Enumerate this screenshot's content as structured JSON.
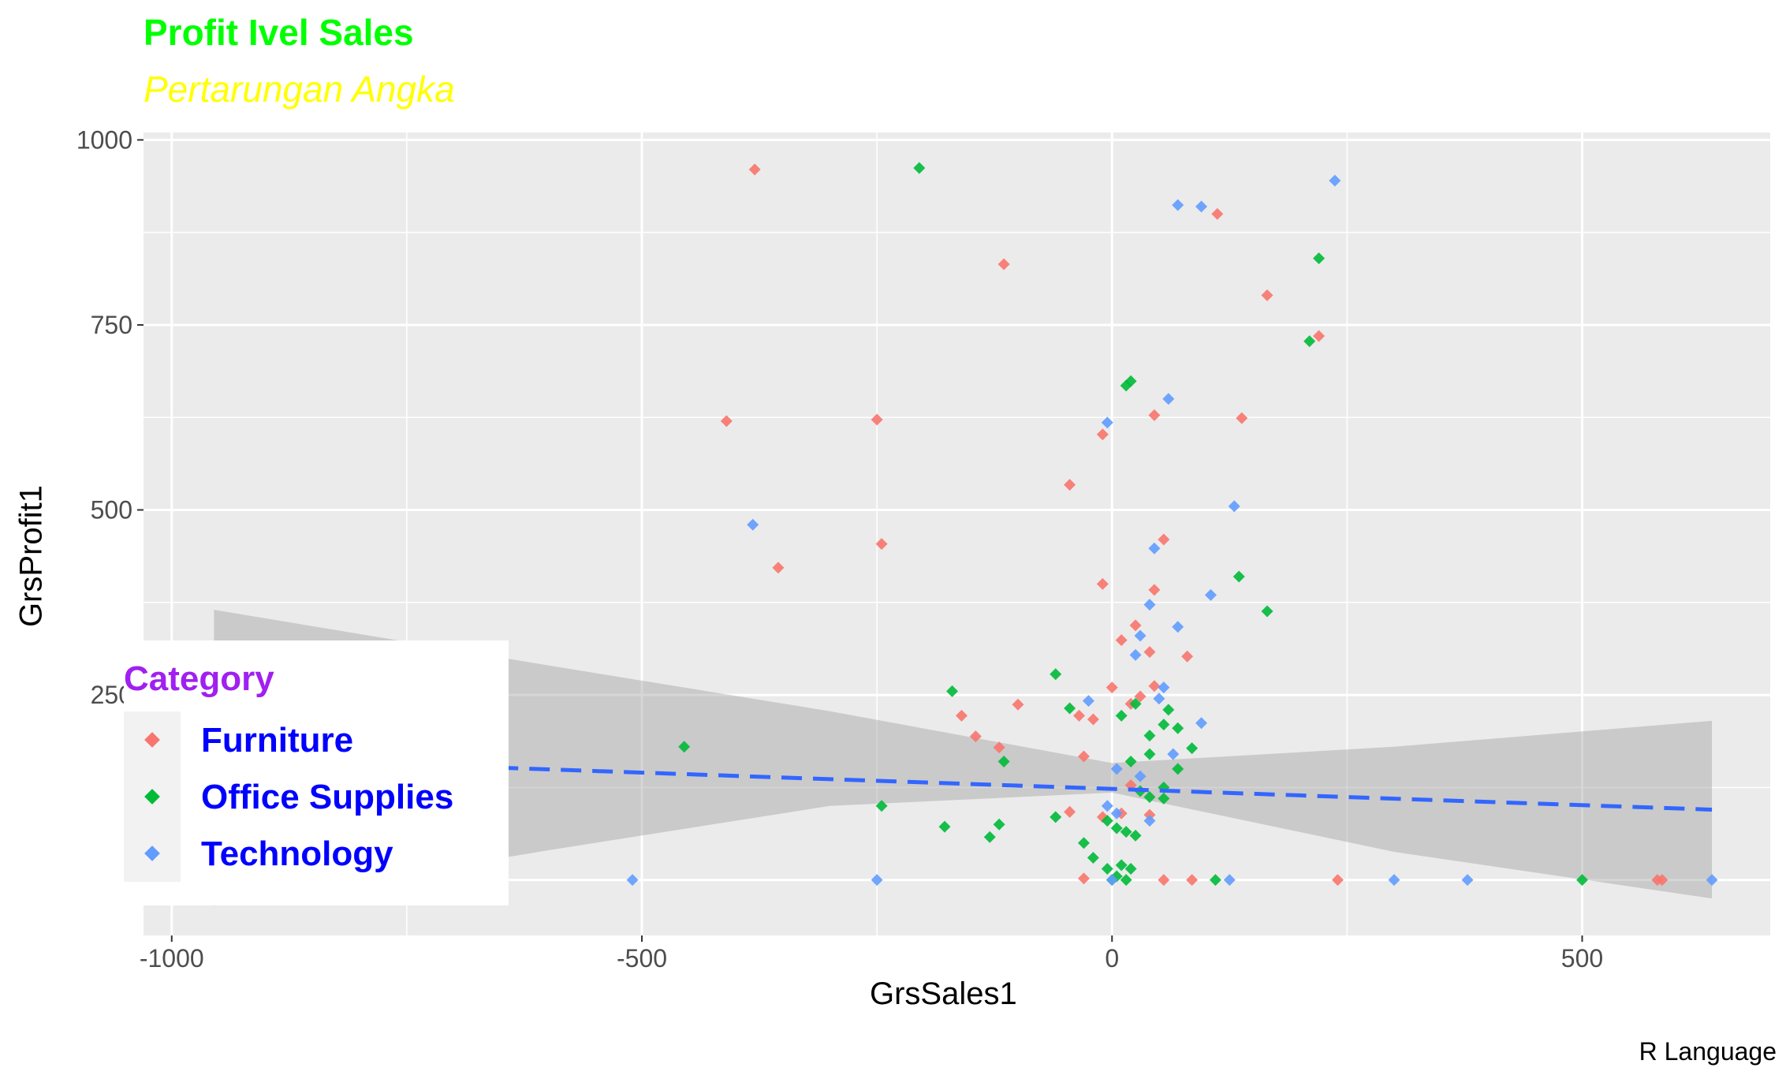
{
  "chart_data": {
    "type": "scatter",
    "title": "Profit Ivel Sales",
    "subtitle": "Pertarungan Angka",
    "caption": "R Language",
    "xlabel": "GrsSales1",
    "ylabel": "GrsProfit1",
    "xlim": [
      -1030,
      700
    ],
    "ylim": [
      -75,
      1010
    ],
    "x_ticks": [
      -1000,
      -500,
      0,
      500
    ],
    "y_ticks": [
      1000,
      750,
      500,
      250
    ],
    "grid": true,
    "legend_position": "bottom-left",
    "legend_title": "Category",
    "series": [
      {
        "name": "Furniture",
        "color": "#F8766D",
        "points": [
          [
            -380,
            960
          ],
          [
            -115,
            832
          ],
          [
            -410,
            620
          ],
          [
            -250,
            622
          ],
          [
            -245,
            454
          ],
          [
            -355,
            422
          ],
          [
            -45,
            534
          ],
          [
            -10,
            602
          ],
          [
            -10,
            400
          ],
          [
            45,
            628
          ],
          [
            55,
            460
          ],
          [
            112,
            900
          ],
          [
            165,
            790
          ],
          [
            220,
            735
          ],
          [
            138,
            624
          ],
          [
            45,
            392
          ],
          [
            25,
            344
          ],
          [
            40,
            308
          ],
          [
            10,
            324
          ],
          [
            80,
            302
          ],
          [
            45,
            262
          ],
          [
            0,
            260
          ],
          [
            30,
            248
          ],
          [
            20,
            238
          ],
          [
            -100,
            237
          ],
          [
            -160,
            222
          ],
          [
            -35,
            222
          ],
          [
            -20,
            217
          ],
          [
            -145,
            194
          ],
          [
            -120,
            179
          ],
          [
            -30,
            167
          ],
          [
            -45,
            92
          ],
          [
            -10,
            85
          ],
          [
            10,
            90
          ],
          [
            40,
            88
          ],
          [
            20,
            128
          ],
          [
            -30,
            2
          ],
          [
            55,
            0
          ],
          [
            85,
            0
          ],
          [
            240,
            0
          ],
          [
            580,
            0
          ],
          [
            585,
            0
          ]
        ]
      },
      {
        "name": "Office Supplies",
        "color": "#00BA38",
        "points": [
          [
            -205,
            962
          ],
          [
            220,
            840
          ],
          [
            210,
            728
          ],
          [
            20,
            674
          ],
          [
            15,
            668
          ],
          [
            -60,
            278
          ],
          [
            -170,
            255
          ],
          [
            -45,
            232
          ],
          [
            135,
            410
          ],
          [
            165,
            363
          ],
          [
            25,
            238
          ],
          [
            10,
            222
          ],
          [
            60,
            230
          ],
          [
            70,
            205
          ],
          [
            55,
            210
          ],
          [
            40,
            195
          ],
          [
            85,
            178
          ],
          [
            -115,
            160
          ],
          [
            70,
            150
          ],
          [
            40,
            170
          ],
          [
            20,
            160
          ],
          [
            55,
            125
          ],
          [
            30,
            120
          ],
          [
            40,
            112
          ],
          [
            55,
            110
          ],
          [
            -245,
            100
          ],
          [
            -60,
            85
          ],
          [
            -120,
            75
          ],
          [
            -178,
            72
          ],
          [
            -130,
            58
          ],
          [
            -30,
            50
          ],
          [
            -5,
            80
          ],
          [
            5,
            70
          ],
          [
            15,
            65
          ],
          [
            25,
            60
          ],
          [
            -20,
            30
          ],
          [
            10,
            20
          ],
          [
            20,
            15
          ],
          [
            -5,
            15
          ],
          [
            5,
            5
          ],
          [
            0,
            0
          ],
          [
            15,
            0
          ],
          [
            110,
            0
          ],
          [
            500,
            0
          ],
          [
            -455,
            180
          ]
        ]
      },
      {
        "name": "Technology",
        "color": "#619CFF",
        "points": [
          [
            237,
            945
          ],
          [
            70,
            912
          ],
          [
            95,
            910
          ],
          [
            -382,
            480
          ],
          [
            60,
            650
          ],
          [
            -5,
            618
          ],
          [
            130,
            505
          ],
          [
            45,
            448
          ],
          [
            105,
            385
          ],
          [
            40,
            372
          ],
          [
            70,
            342
          ],
          [
            30,
            330
          ],
          [
            25,
            304
          ],
          [
            -25,
            242
          ],
          [
            55,
            260
          ],
          [
            50,
            245
          ],
          [
            95,
            212
          ],
          [
            65,
            170
          ],
          [
            5,
            150
          ],
          [
            30,
            140
          ],
          [
            -5,
            100
          ],
          [
            5,
            90
          ],
          [
            40,
            80
          ],
          [
            0,
            0
          ],
          [
            -510,
            0
          ],
          [
            -250,
            0
          ],
          [
            125,
            0
          ],
          [
            300,
            0
          ],
          [
            378,
            0
          ],
          [
            638,
            0
          ]
        ]
      }
    ],
    "trend_line": {
      "method": "lm",
      "style": "dashed",
      "color": "#3366FF",
      "points": [
        [
          -955,
          165
        ],
        [
          638,
          95
        ]
      ],
      "band": {
        "color": "#999999",
        "upper": [
          [
            -955,
            365
          ],
          [
            -600,
            290
          ],
          [
            -300,
            228
          ],
          [
            0,
            158
          ],
          [
            300,
            180
          ],
          [
            638,
            215
          ]
        ],
        "lower": [
          [
            -955,
            -35
          ],
          [
            -600,
            40
          ],
          [
            -300,
            100
          ],
          [
            0,
            118
          ],
          [
            300,
            38
          ],
          [
            638,
            -25
          ]
        ]
      }
    }
  }
}
